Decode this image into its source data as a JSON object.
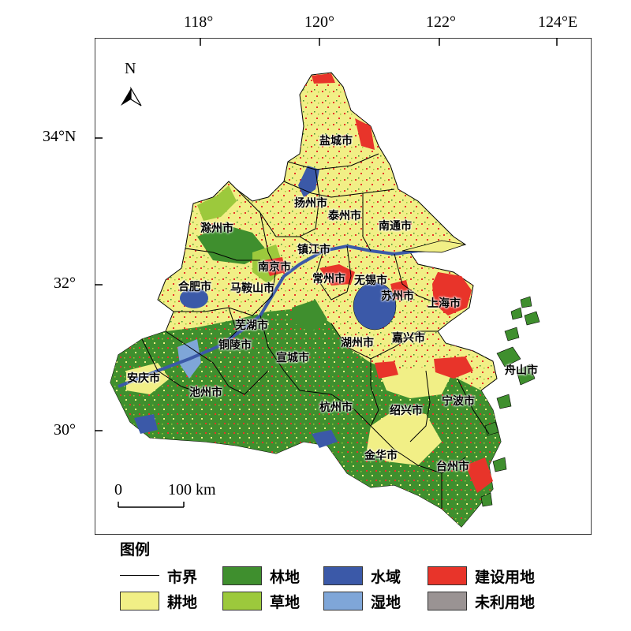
{
  "axes": {
    "lon_ticks": [
      "118°",
      "120°",
      "122°",
      "124°E"
    ],
    "lat_ticks": [
      "34°N",
      "32°",
      "30°"
    ]
  },
  "north_arrow": {
    "label": "N",
    "icon": "north-arrow-icon"
  },
  "scale_bar": {
    "start": "0",
    "end": "100 km"
  },
  "cities": [
    "盐城市",
    "扬州市",
    "泰州市",
    "南通市",
    "滁州市",
    "镇江市",
    "南京市",
    "常州市",
    "无锡市",
    "合肥市",
    "马鞍山市",
    "苏州市",
    "上海市",
    "芜湖市",
    "铜陵市",
    "湖州市",
    "嘉兴市",
    "宣城市",
    "安庆市",
    "舟山市",
    "池州市",
    "杭州市",
    "绍兴市",
    "宁波市",
    "金华市",
    "台州市"
  ],
  "legend": {
    "title": "图例",
    "items": [
      {
        "label": "市界",
        "type": "line",
        "color": "#000000"
      },
      {
        "label": "林地",
        "type": "fill",
        "color": "#3f8f2e"
      },
      {
        "label": "水域",
        "type": "fill",
        "color": "#3b59a8"
      },
      {
        "label": "建设用地",
        "type": "fill",
        "color": "#e8342a"
      },
      {
        "label": "耕地",
        "type": "fill",
        "color": "#f1ef86"
      },
      {
        "label": "草地",
        "type": "fill",
        "color": "#9cc93c"
      },
      {
        "label": "湿地",
        "type": "fill",
        "color": "#7fa6d8"
      },
      {
        "label": "未利用地",
        "type": "fill",
        "color": "#9a9393"
      }
    ]
  },
  "colors": {
    "cropland": "#f1ef86",
    "forest": "#3f8f2e",
    "grassland": "#9cc93c",
    "water": "#3b59a8",
    "wetland": "#7fa6d8",
    "built": "#e8342a",
    "barren": "#9a9393"
  }
}
